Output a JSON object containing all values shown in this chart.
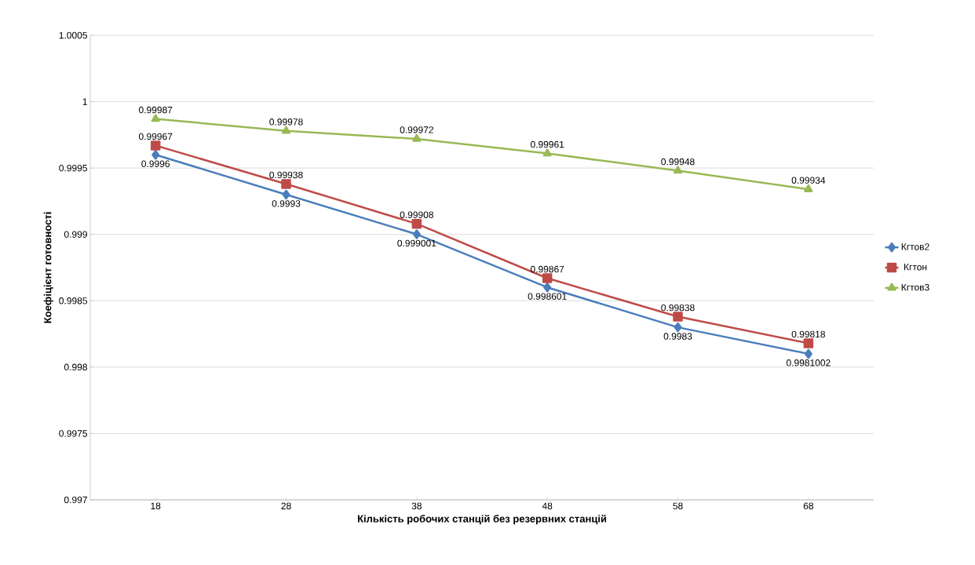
{
  "chart_data": {
    "type": "line",
    "xlabel": "Кількість  робочих станцій без резервних станцій",
    "ylabel": "Коефіцієнт готовності",
    "categories": [
      "18",
      "28",
      "38",
      "48",
      "58",
      "68"
    ],
    "ylim": [
      0.997,
      1.0005
    ],
    "yticks": [
      0.997,
      0.9975,
      0.998,
      0.9985,
      0.999,
      0.9995,
      1,
      1.0005
    ],
    "grid": "y",
    "legend": "right",
    "data_labels": true,
    "series": [
      {
        "name": "Кгтов2",
        "color": "#4a7ebb",
        "marker": "diamond",
        "values": [
          0.9996,
          0.9993,
          0.999001,
          0.998601,
          0.9983,
          0.9981002
        ],
        "value_labels": [
          "0.9996",
          "0.9993",
          "0.999001",
          "0.998601",
          "0.9983",
          "0.9981002"
        ]
      },
      {
        "name": "Кгтон",
        "color": "#be4b48",
        "marker": "square",
        "values": [
          0.99967,
          0.99938,
          0.99908,
          0.99867,
          0.99838,
          0.99818
        ],
        "value_labels": [
          "0.99967",
          "0.99938",
          "0.99908",
          "0.99867",
          "0.99838",
          "0.99818"
        ]
      },
      {
        "name": "Кгтов3",
        "color": "#98b954",
        "marker": "triangle",
        "values": [
          0.99987,
          0.99978,
          0.99972,
          0.99961,
          0.99948,
          0.99934
        ],
        "value_labels": [
          "0.99987",
          "0.99978",
          "0.99972",
          "0.99961",
          "0.99948",
          "0.99934"
        ]
      }
    ]
  }
}
